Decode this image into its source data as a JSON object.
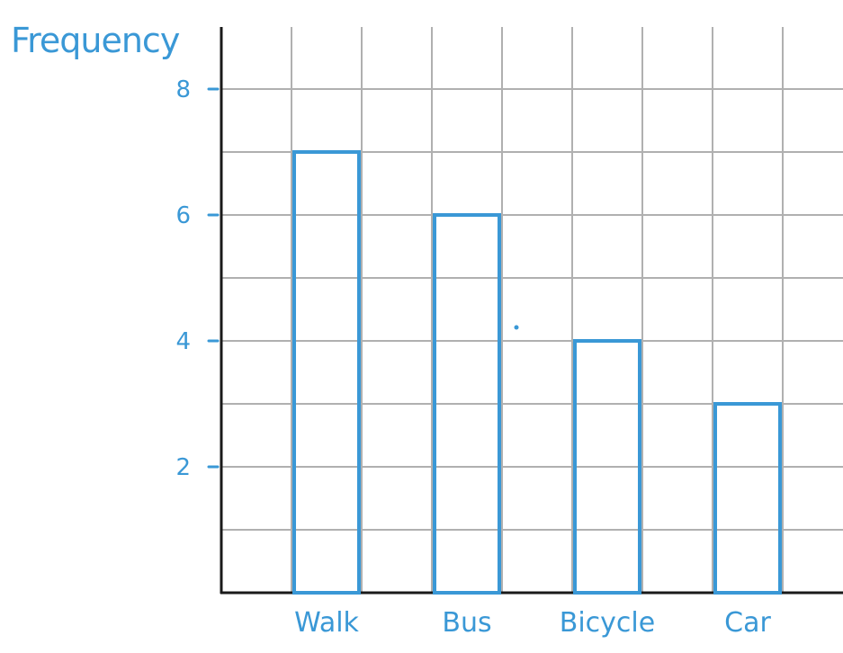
{
  "chart_data": {
    "type": "bar",
    "ylabel": "Frequency",
    "xlabel": "",
    "categories": [
      "Walk",
      "Bus",
      "Bicycle",
      "Car"
    ],
    "values": [
      7,
      6,
      4,
      3
    ],
    "ylim": [
      0,
      9
    ],
    "yticks": [
      2,
      4,
      6,
      8
    ],
    "ytick_labels": [
      "2",
      "4",
      "6",
      "8"
    ],
    "grid": true,
    "colors": {
      "bars": "#3a98d6",
      "grid": "#b0b0b0",
      "axis": "#1a1a1a",
      "text": "#3a98d6"
    }
  }
}
